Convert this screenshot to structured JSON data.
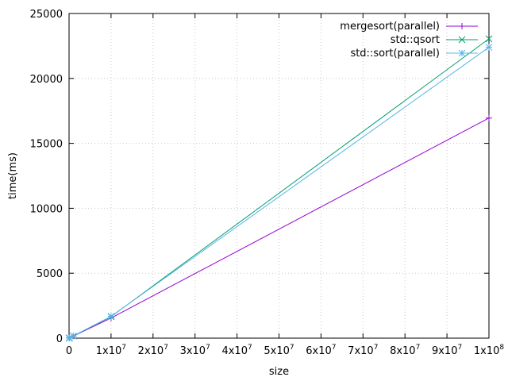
{
  "chart_data": {
    "type": "line",
    "title": "",
    "xlabel": "size",
    "ylabel": "time(ms)",
    "xlim": [
      0,
      100000000
    ],
    "ylim": [
      0,
      25000
    ],
    "grid": true,
    "legend_position": "top-right",
    "x_ticks": [
      {
        "value": 0,
        "base": "0",
        "exp": ""
      },
      {
        "value": 10000000,
        "base": "1x10",
        "exp": "7"
      },
      {
        "value": 20000000,
        "base": "2x10",
        "exp": "7"
      },
      {
        "value": 30000000,
        "base": "3x10",
        "exp": "7"
      },
      {
        "value": 40000000,
        "base": "4x10",
        "exp": "7"
      },
      {
        "value": 50000000,
        "base": "5x10",
        "exp": "7"
      },
      {
        "value": 60000000,
        "base": "6x10",
        "exp": "7"
      },
      {
        "value": 70000000,
        "base": "7x10",
        "exp": "7"
      },
      {
        "value": 80000000,
        "base": "8x10",
        "exp": "7"
      },
      {
        "value": 90000000,
        "base": "9x10",
        "exp": "7"
      },
      {
        "value": 100000000,
        "base": "1x10",
        "exp": "8"
      }
    ],
    "y_ticks": [
      {
        "value": 0,
        "label": "0"
      },
      {
        "value": 5000,
        "label": "5000"
      },
      {
        "value": 10000,
        "label": "10000"
      },
      {
        "value": 15000,
        "label": "15000"
      },
      {
        "value": 20000,
        "label": "20000"
      },
      {
        "value": 25000,
        "label": "25000"
      }
    ],
    "series": [
      {
        "name": "mergesort(parallel)",
        "color": "#9400d3",
        "marker": "plus",
        "points": [
          [
            10000,
            2
          ],
          [
            100000,
            15
          ],
          [
            1000000,
            155
          ],
          [
            10000000,
            1550
          ],
          [
            100000000,
            16950
          ]
        ]
      },
      {
        "name": "std::qsort",
        "color": "#009e73",
        "marker": "cross",
        "points": [
          [
            10000,
            2
          ],
          [
            100000,
            16
          ],
          [
            1000000,
            165
          ],
          [
            10000000,
            1650
          ],
          [
            100000000,
            23050
          ]
        ]
      },
      {
        "name": "std::sort(parallel)",
        "color": "#56b4e9",
        "marker": "star",
        "points": [
          [
            10000,
            2
          ],
          [
            100000,
            16
          ],
          [
            1000000,
            170
          ],
          [
            10000000,
            1680
          ],
          [
            100000000,
            22400
          ]
        ]
      }
    ]
  }
}
